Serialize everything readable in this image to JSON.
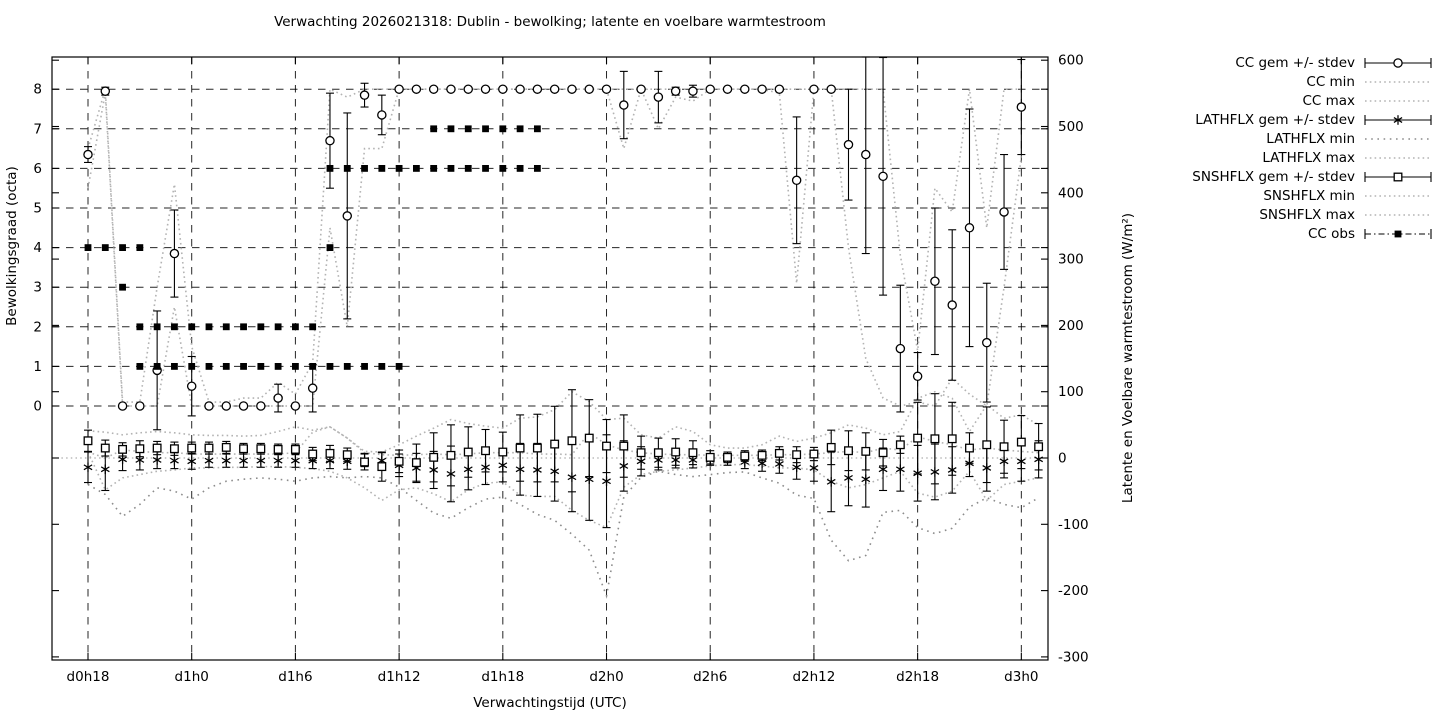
{
  "title": "Verwachting 2026021318: Dublin - bewolking; latente en voelbare warmtestroom",
  "axes": {
    "x_label": "Verwachtingstijd (UTC)",
    "x_tick_labels": [
      "d0h18",
      "d1h0",
      "d1h6",
      "d1h12",
      "d1h18",
      "d2h0",
      "d2h6",
      "d2h12",
      "d2h18",
      "d3h0"
    ],
    "x_tick_hours": [
      18,
      24,
      30,
      36,
      42,
      48,
      54,
      60,
      66,
      72
    ],
    "y_left_label": "Bewolkingsgraad (octa)",
    "y_left_ticks": [
      8,
      7,
      6,
      5,
      4,
      3,
      2,
      1,
      0
    ],
    "y_right_label": "Latente en Voelbare warmtestroom (W/m²)",
    "y_right_ticks": [
      600,
      500,
      400,
      300,
      200,
      100,
      0,
      -100,
      -200,
      -300
    ]
  },
  "legend": [
    {
      "label": "CC gem +/- stdev",
      "style": "errorbar-circle"
    },
    {
      "label": "CC min",
      "style": "dotted"
    },
    {
      "label": "CC max",
      "style": "dotted"
    },
    {
      "label": "LATHFLX gem +/- stdev",
      "style": "errorbar-asterisk"
    },
    {
      "label": "LATHFLX min",
      "style": "dotted-sparse"
    },
    {
      "label": "LATHFLX max",
      "style": "dotted"
    },
    {
      "label": "SNSHFLX gem +/- stdev",
      "style": "errorbar-square"
    },
    {
      "label": "SNSHFLX min",
      "style": "dotted"
    },
    {
      "label": "SNSHFLX max",
      "style": "dotted"
    },
    {
      "label": "CC obs",
      "style": "obs-square"
    }
  ],
  "colors": {
    "foreground": "#000000",
    "grid": "#000000",
    "minmax_dotted": "#b3b3b3",
    "lathflx_min_dotted": "#8c8c8c",
    "background": "#ffffff"
  },
  "chart_data": {
    "type": "scatter",
    "title": "Verwachting 2026021318: Dublin - bewolking; latente en voelbare warmtestroom",
    "xlabel": "Verwachtingstijd (UTC)",
    "ylabel_left": "Bewolkingsgraad (octa)",
    "ylabel_right": "Latente en Voelbare warmtestroom (W/m2)",
    "x_range_hours": [
      15.9,
      73.5
    ],
    "octa_axis_ticks": [
      0,
      8
    ],
    "wm2_axis_range": [
      -300,
      600
    ],
    "grid": "dashed horizontal lines at each octa 0-8, dashed vertical lines every 6 h",
    "hours": [
      18,
      19,
      20,
      21,
      22,
      23,
      24,
      25,
      26,
      27,
      28,
      29,
      30,
      31,
      32,
      33,
      34,
      35,
      36,
      37,
      38,
      39,
      40,
      41,
      42,
      43,
      44,
      45,
      46,
      47,
      48,
      49,
      50,
      51,
      52,
      53,
      54,
      55,
      56,
      57,
      58,
      59,
      60,
      61,
      62,
      63,
      64,
      65,
      66,
      67,
      68,
      69,
      70,
      71,
      72,
      73
    ],
    "series": [
      {
        "name": "CC gem +/- stdev",
        "axis": "octa",
        "style": "errorbar-circle",
        "mean": [
          6.35,
          7.95,
          0,
          0,
          0.9,
          3.85,
          0.5,
          0,
          0,
          0,
          0,
          0.2,
          0,
          0.45,
          6.7,
          4.8,
          7.85,
          7.35,
          8,
          8,
          8,
          8,
          8,
          8,
          8,
          8,
          8,
          8,
          8,
          8,
          8,
          7.6,
          8,
          7.8,
          7.95,
          7.95,
          8,
          8,
          8,
          8,
          8,
          5.7,
          8,
          8,
          6.6,
          6.35,
          5.8,
          1.45,
          0.75,
          3.15,
          2.55,
          4.5,
          1.6,
          4.9,
          7.55,
          null
        ],
        "stdev": [
          0.2,
          0.1,
          0,
          0,
          1.5,
          1.1,
          0.75,
          0,
          0,
          0,
          0,
          0.35,
          0,
          0.6,
          1.2,
          2.6,
          0.3,
          0.5,
          0,
          0,
          0,
          0,
          0,
          0,
          0,
          0,
          0,
          0,
          0,
          0,
          0,
          0.85,
          0,
          0.65,
          0.1,
          0.15,
          0,
          0,
          0,
          0,
          0.05,
          1.6,
          0,
          0,
          1.4,
          2.5,
          3,
          1.6,
          0.6,
          1.85,
          1.9,
          3,
          1.5,
          1.45,
          1.2,
          null
        ]
      },
      {
        "name": "CC min",
        "axis": "octa",
        "style": "dotted",
        "values": [
          5.5,
          7.9,
          0,
          0,
          0,
          2.5,
          0,
          0,
          0,
          0,
          0,
          0,
          0,
          0,
          4.5,
          2,
          6.5,
          6.5,
          8,
          8,
          8,
          8,
          8,
          8,
          8,
          8,
          8,
          8,
          8,
          8,
          8,
          6.5,
          8,
          7,
          7.8,
          7.7,
          8,
          8,
          8,
          8,
          7.9,
          3.1,
          8,
          8,
          4,
          1.2,
          0.2,
          0,
          0.1,
          0,
          0.7,
          0.3,
          0,
          3,
          6.3,
          null
        ]
      },
      {
        "name": "CC max",
        "axis": "octa",
        "style": "dotted",
        "values": [
          6.5,
          8,
          0.1,
          0.1,
          3,
          5.6,
          1.5,
          0.1,
          0.1,
          0.2,
          0.2,
          0.6,
          0.3,
          1.1,
          8,
          7.8,
          8,
          8,
          8,
          8,
          8,
          8,
          8,
          8,
          8,
          8,
          8,
          8,
          8,
          8,
          8,
          8,
          8,
          8,
          8,
          8,
          8,
          8,
          8,
          8,
          8,
          8,
          8,
          8,
          8,
          8,
          8,
          3.8,
          1.4,
          5.5,
          4.9,
          8,
          4.5,
          8,
          8,
          null
        ]
      },
      {
        "name": "LATHFLX gem +/- stdev",
        "axis": "wm2",
        "style": "errorbar-asterisk",
        "mean": [
          -14,
          -17,
          -2,
          -3,
          -3,
          -4,
          -5,
          -4,
          -4,
          -4,
          -4,
          -4,
          -4,
          -4,
          -4,
          -5,
          -3,
          -4,
          -11,
          -15,
          -18,
          -24,
          -17,
          -14,
          -11,
          -17,
          -18,
          -20,
          -29,
          -32,
          -35,
          -12,
          -5,
          -3,
          -3,
          -3,
          -3,
          -3,
          -6,
          -8,
          -9,
          -14,
          -15,
          -36,
          -30,
          -32,
          -17,
          -17,
          -23,
          -21,
          -18,
          -8,
          -15,
          -5,
          -5,
          -2
        ],
        "stdev": [
          23,
          32,
          17,
          15,
          13,
          12,
          12,
          10,
          10,
          10,
          10,
          10,
          10,
          12,
          12,
          12,
          10,
          12,
          17,
          22,
          28,
          42,
          31,
          26,
          25,
          39,
          40,
          45,
          52,
          62,
          70,
          38,
          22,
          15,
          12,
          12,
          8,
          8,
          10,
          12,
          14,
          18,
          20,
          45,
          42,
          42,
          32,
          33,
          42,
          42,
          35,
          20,
          35,
          25,
          30,
          28
        ]
      },
      {
        "name": "LATHFLX min",
        "axis": "wm2",
        "style": "dotted-sparse",
        "values": [
          -40,
          -55,
          -88,
          -70,
          -45,
          -50,
          -62,
          -45,
          -35,
          -32,
          -30,
          -32,
          -35,
          -30,
          -28,
          -30,
          -28,
          -30,
          -44,
          -64,
          -83,
          -91,
          -75,
          -62,
          -59,
          -70,
          -85,
          -94,
          -115,
          -139,
          -208,
          -59,
          -29,
          -20,
          -25,
          -28,
          -25,
          -22,
          -21,
          -30,
          -38,
          -56,
          -61,
          -124,
          -155,
          -147,
          -82,
          -79,
          -105,
          -114,
          -106,
          -74,
          -60,
          -70,
          -75,
          -60
        ]
      },
      {
        "name": "LATHFLX max",
        "axis": "wm2",
        "style": "dotted",
        "values": [
          9,
          0,
          12,
          10,
          8,
          8,
          6,
          6,
          6,
          6,
          6,
          6,
          8,
          39,
          47,
          30,
          8,
          5,
          4,
          5,
          6,
          5,
          6,
          8,
          8,
          8,
          6,
          6,
          5,
          38,
          20,
          12,
          8,
          6,
          5,
          5,
          4,
          4,
          4,
          4,
          5,
          5,
          6,
          8,
          10,
          8,
          15,
          12,
          32,
          25,
          20,
          12,
          15,
          12,
          10,
          8
        ]
      },
      {
        "name": "SNSHFLX gem +/- stdev",
        "axis": "wm2",
        "style": "errorbar-square",
        "mean": [
          26,
          15,
          13,
          14,
          15,
          14,
          15,
          15,
          16,
          14,
          14,
          13,
          13,
          6,
          7,
          5,
          -6,
          -13,
          -5,
          -7,
          1,
          4,
          9,
          11,
          9,
          15,
          15,
          21,
          26,
          30,
          18,
          18,
          8,
          8,
          9,
          8,
          1,
          1,
          3,
          4,
          7,
          5,
          6,
          16,
          11,
          10,
          8,
          20,
          30,
          29,
          29,
          15,
          20,
          17,
          24,
          17
        ],
        "stdev": [
          16,
          12,
          10,
          12,
          10,
          10,
          9,
          9,
          9,
          8,
          8,
          8,
          8,
          10,
          12,
          10,
          12,
          22,
          17,
          28,
          37,
          46,
          38,
          32,
          30,
          50,
          51,
          57,
          77,
          58,
          40,
          47,
          25,
          22,
          20,
          18,
          10,
          8,
          8,
          8,
          10,
          12,
          10,
          26,
          30,
          28,
          20,
          13,
          54,
          68,
          55,
          23,
          57,
          40,
          40,
          35
        ]
      },
      {
        "name": "SNSHFLX min",
        "axis": "wm2",
        "style": "dotted",
        "values": [
          9,
          -48,
          -30,
          -25,
          -20,
          -18,
          -15,
          -15,
          -14,
          -14,
          -13,
          -13,
          -14,
          -16,
          -20,
          -30,
          -45,
          -64,
          -48,
          -45,
          -54,
          -66,
          -48,
          -38,
          -36,
          -56,
          -58,
          -58,
          -79,
          -94,
          -105,
          -44,
          -25,
          -20,
          -18,
          -15,
          -12,
          -10,
          -10,
          -12,
          -15,
          -15,
          -18,
          -35,
          -45,
          -40,
          -30,
          -20,
          -53,
          -59,
          -50,
          -20,
          -64,
          -40,
          -35,
          -30
        ]
      },
      {
        "name": "SNSHFLX max",
        "axis": "wm2",
        "style": "dotted",
        "values": [
          41,
          39,
          35,
          38,
          40,
          38,
          35,
          34,
          34,
          33,
          34,
          40,
          47,
          42,
          47,
          30,
          10,
          9,
          20,
          33,
          45,
          58,
          52,
          48,
          45,
          60,
          62,
          73,
          100,
          85,
          58,
          60,
          35,
          30,
          47,
          40,
          20,
          15,
          15,
          20,
          33,
          25,
          30,
          38,
          50,
          45,
          35,
          40,
          90,
          100,
          90,
          40,
          80,
          60,
          65,
          50
        ]
      },
      {
        "name": "CC obs",
        "axis": "octa",
        "style": "points-filled-square",
        "points": [
          [
            18,
            4
          ],
          [
            19,
            4
          ],
          [
            20,
            4
          ],
          [
            21,
            4
          ],
          [
            20,
            3
          ],
          [
            21,
            2
          ],
          [
            22,
            2
          ],
          [
            23,
            2
          ],
          [
            24,
            2
          ],
          [
            25,
            2
          ],
          [
            26,
            2
          ],
          [
            27,
            2
          ],
          [
            28,
            2
          ],
          [
            29,
            2
          ],
          [
            30,
            2
          ],
          [
            31,
            2
          ],
          [
            21,
            1
          ],
          [
            22,
            1
          ],
          [
            23,
            1
          ],
          [
            24,
            1
          ],
          [
            25,
            1
          ],
          [
            26,
            1
          ],
          [
            27,
            1
          ],
          [
            28,
            1
          ],
          [
            29,
            1
          ],
          [
            30,
            1
          ],
          [
            31,
            1
          ],
          [
            32,
            1
          ],
          [
            33,
            1
          ],
          [
            34,
            1
          ],
          [
            35,
            1
          ],
          [
            36,
            1
          ],
          [
            32,
            4
          ],
          [
            32,
            6
          ],
          [
            33,
            6
          ],
          [
            34,
            6
          ],
          [
            35,
            6
          ],
          [
            36,
            6
          ],
          [
            37,
            6
          ],
          [
            38,
            6
          ],
          [
            39,
            6
          ],
          [
            40,
            6
          ],
          [
            41,
            6
          ],
          [
            42,
            6
          ],
          [
            43,
            6
          ],
          [
            44,
            6
          ],
          [
            38,
            7
          ],
          [
            39,
            7
          ],
          [
            40,
            7
          ],
          [
            41,
            7
          ],
          [
            42,
            7
          ],
          [
            43,
            7
          ],
          [
            44,
            7
          ]
        ]
      }
    ]
  }
}
